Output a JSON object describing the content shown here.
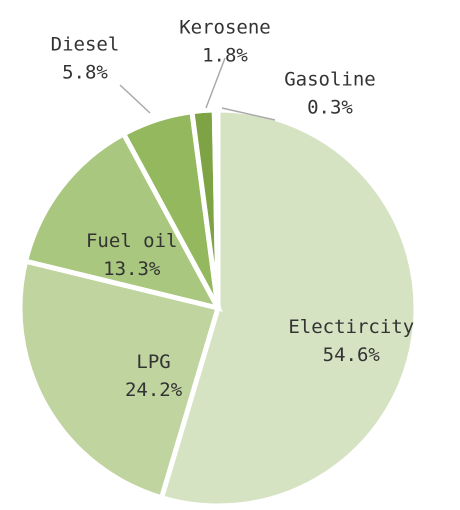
{
  "chart_data": {
    "type": "pie",
    "categories": [
      "Electircity",
      "LPG",
      "Fuel oil",
      "Diesel",
      "Kerosene",
      "Gasoline"
    ],
    "values": [
      54.6,
      24.2,
      13.3,
      5.8,
      1.8,
      0.3
    ],
    "value_labels": [
      "54.6%",
      "24.2%",
      "13.3%",
      "5.8%",
      "1.8%",
      "0.3%"
    ],
    "colors": [
      "#d6e3c3",
      "#c0d4a0",
      "#a9c77f",
      "#93b85e",
      "#7da344",
      "#6b9134"
    ]
  }
}
